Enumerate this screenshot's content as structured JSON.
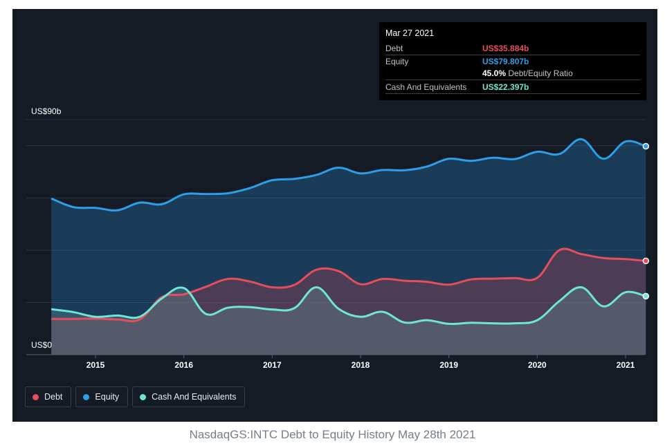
{
  "caption": "NasdaqGS:INTC Debt to Equity History May 28th 2021",
  "tooltip": {
    "date": "Mar 27 2021",
    "rows": [
      {
        "label": "Debt",
        "value": "US$35.884b",
        "color": "#e84d5b"
      },
      {
        "label": "Equity",
        "value": "US$79.807b",
        "color": "#2d9ee8"
      },
      {
        "label": "Cash And Equivalents",
        "value": "US$22.397b",
        "color": "#6ee6d6"
      }
    ],
    "ratio_value": "45.0%",
    "ratio_label": "Debt/Equity Ratio"
  },
  "legend": [
    {
      "label": "Debt",
      "color": "#e84d5b"
    },
    {
      "label": "Equity",
      "color": "#2d9ee8"
    },
    {
      "label": "Cash And Equivalents",
      "color": "#6ee6d6"
    }
  ],
  "chart_data": {
    "type": "area",
    "y_top_label": "US$90b",
    "y_bottom_label": "US$0",
    "ylim": [
      0,
      90
    ],
    "xlim": [
      2014.5,
      2021.25
    ],
    "x_ticks": [
      "2015",
      "2016",
      "2017",
      "2018",
      "2019",
      "2020",
      "2021"
    ],
    "grid": true,
    "legend_position": "bottom-left",
    "series": [
      {
        "name": "Equity",
        "color": "#2d9ee8",
        "x": [
          2014.5,
          2014.75,
          2015.0,
          2015.25,
          2015.5,
          2015.75,
          2016.0,
          2016.25,
          2016.5,
          2016.75,
          2017.0,
          2017.25,
          2017.5,
          2017.75,
          2018.0,
          2018.25,
          2018.5,
          2018.75,
          2019.0,
          2019.25,
          2019.5,
          2019.75,
          2020.0,
          2020.25,
          2020.5,
          2020.75,
          2021.0,
          2021.23
        ],
        "values": [
          59.8,
          56.5,
          56.2,
          55.3,
          58.2,
          57.6,
          61.4,
          61.5,
          61.8,
          63.8,
          66.8,
          67.3,
          68.8,
          71.6,
          69.4,
          70.7,
          70.6,
          72.0,
          75.0,
          74.2,
          75.4,
          74.9,
          77.7,
          76.8,
          82.5,
          75.0,
          81.6,
          79.8
        ]
      },
      {
        "name": "Debt",
        "color": "#e84d5b",
        "x": [
          2014.5,
          2014.75,
          2015.0,
          2015.25,
          2015.5,
          2015.75,
          2016.0,
          2016.25,
          2016.5,
          2016.75,
          2017.0,
          2017.25,
          2017.5,
          2017.75,
          2018.0,
          2018.25,
          2018.5,
          2018.75,
          2019.0,
          2019.25,
          2019.5,
          2019.75,
          2020.0,
          2020.25,
          2020.5,
          2020.75,
          2021.0,
          2021.23
        ],
        "values": [
          13.7,
          13.7,
          13.8,
          13.5,
          13.5,
          22.0,
          23.1,
          26.0,
          29.0,
          28.0,
          25.8,
          26.7,
          32.5,
          32.0,
          27.0,
          29.0,
          28.3,
          27.9,
          26.8,
          28.8,
          29.1,
          29.3,
          29.4,
          40.0,
          38.5,
          37.0,
          36.6,
          35.9
        ]
      },
      {
        "name": "Cash And Equivalents",
        "color": "#6ee6d6",
        "x": [
          2014.5,
          2014.75,
          2015.0,
          2015.25,
          2015.5,
          2015.75,
          2016.0,
          2016.25,
          2016.5,
          2016.75,
          2017.0,
          2017.25,
          2017.5,
          2017.75,
          2018.0,
          2018.25,
          2018.5,
          2018.75,
          2019.0,
          2019.25,
          2019.5,
          2019.75,
          2020.0,
          2020.25,
          2020.5,
          2020.75,
          2021.0,
          2021.23
        ],
        "values": [
          17.4,
          16.3,
          14.5,
          15.0,
          14.5,
          21.5,
          25.5,
          15.6,
          18.0,
          18.2,
          17.3,
          17.8,
          25.8,
          17.6,
          14.5,
          16.4,
          12.3,
          13.2,
          11.8,
          12.2,
          12.0,
          12.0,
          13.2,
          20.5,
          25.8,
          18.5,
          23.9,
          22.4
        ]
      }
    ]
  }
}
